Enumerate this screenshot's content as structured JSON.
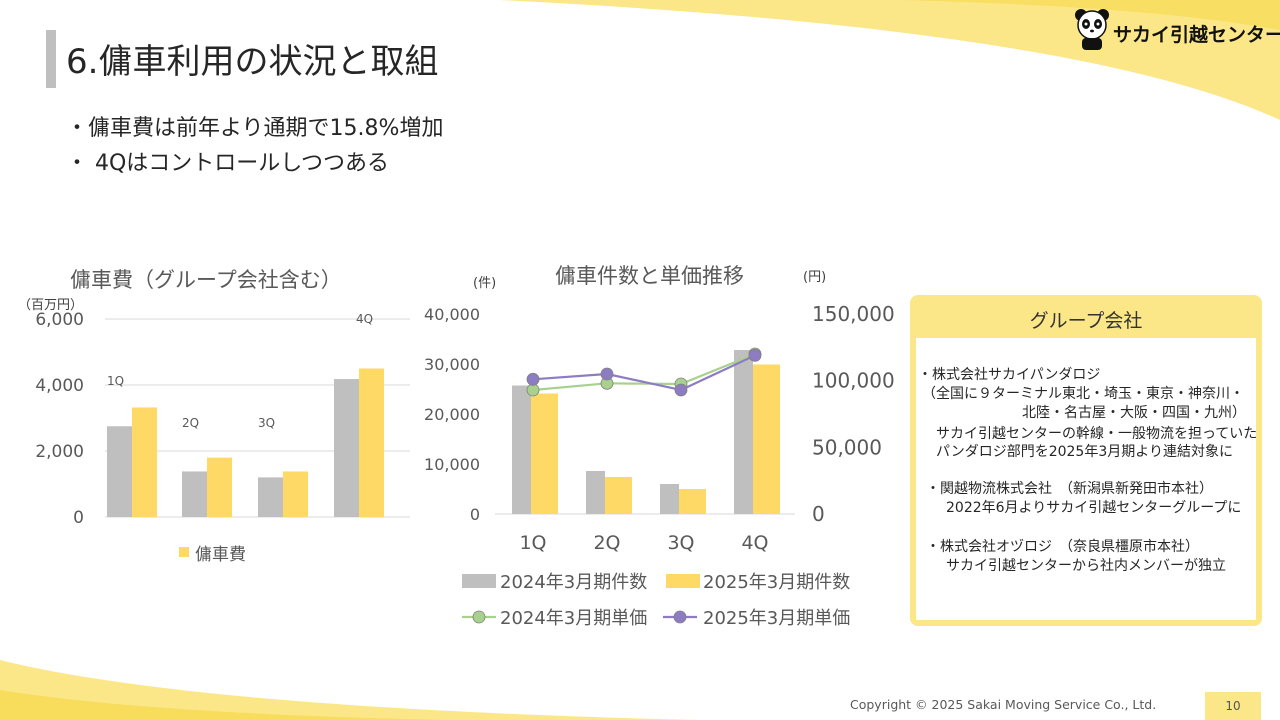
{
  "slide": {
    "title": "6.傭車利用の状況と取組",
    "bullets": [
      "・傭車費は前年より通期で15.8%増加",
      "・ 4Qはコントロールしつつある"
    ],
    "logo_text": "サカイ引越センター",
    "footer": "Copyright © 2025 Sakai Moving Service Co., Ltd.",
    "page_number": "10"
  },
  "group_box": {
    "title": "グループ会社",
    "lines": [
      "・株式会社サカイパンダロジ",
      "（全国に９ターミナル東北・埼玉・東京・神奈川・",
      "北陸・名古屋・大阪・四国・九州）",
      "サカイ引越センターの幹線・一般物流を担っていた",
      "パンダロジ部門を2025年3月期より連結対象に",
      "・関越物流株式会社　（新潟県新発田市本社）",
      "2022年6月よりサカイ引越センターグループに",
      "・株式会社オヅロジ　（奈良県橿原市本社）",
      "サカイ引越センターから社内メンバーが独立"
    ]
  },
  "colors": {
    "gray_bar": "#bfbfbf",
    "yellow_bar": "#ffd966",
    "green_line": "#a9d18e",
    "purple_line": "#8e7cc3",
    "accent_yellow": "#fbe788"
  },
  "chart_data": [
    {
      "type": "bar",
      "title": "傭車費（グループ会社含む）",
      "unit": "（百万円）",
      "categories": [
        "1Q",
        "2Q",
        "3Q",
        "4Q"
      ],
      "category_labels": [
        "1Q",
        "2Q",
        "3Q",
        "4Q"
      ],
      "series": [
        {
          "values": [
            2750,
            1380,
            1200,
            4180
          ]
        },
        {
          "values": [
            3320,
            1800,
            1380,
            4500
          ]
        }
      ],
      "legend": [
        "傭車費"
      ],
      "ylim": [
        0,
        6000
      ],
      "yticks": [
        "0",
        "2,000",
        "4,000",
        "6,000"
      ],
      "grid": true
    },
    {
      "type": "bar",
      "title": "傭車件数と単価推移",
      "left_unit": "(件)",
      "right_unit": "(円)",
      "categories": [
        "1Q",
        "2Q",
        "3Q",
        "4Q"
      ],
      "series": [
        {
          "name": "2024年3月期件数",
          "type": "bar",
          "axis": "left",
          "values": [
            25700,
            8600,
            6000,
            32800
          ]
        },
        {
          "name": "2025年3月期件数",
          "type": "bar",
          "axis": "left",
          "values": [
            24100,
            7400,
            5000,
            29900
          ]
        },
        {
          "name": "2024年3月期単価",
          "type": "line",
          "axis": "right",
          "values": [
            93000,
            98000,
            97500,
            120000
          ]
        },
        {
          "name": "2025年3月期単価",
          "type": "line",
          "axis": "right",
          "values": [
            101000,
            105000,
            93000,
            119000
          ]
        }
      ],
      "ylim_left": [
        0,
        40000
      ],
      "ylim_right": [
        0,
        150000
      ],
      "yticks_left": [
        "0",
        "10,000",
        "20,000",
        "30,000",
        "40,000"
      ],
      "yticks_right": [
        "0",
        "50,000",
        "100,000",
        "150,000"
      ]
    }
  ]
}
